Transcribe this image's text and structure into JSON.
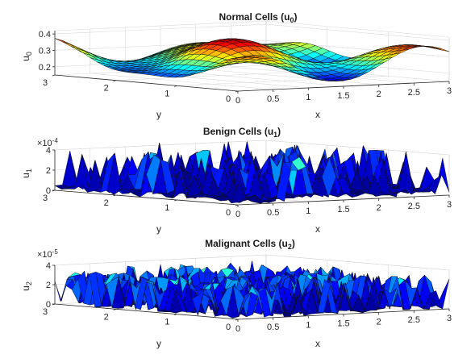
{
  "chart_data": [
    {
      "type": "surface",
      "id": "normal",
      "title": "Normal Cells (u",
      "title_sub": "0",
      "title_end": ")",
      "zlabel": "u",
      "zlabel_sub": "0",
      "xlabel": "x",
      "ylabel": "y",
      "exponent_base": "",
      "exponent_power": "",
      "x_ticks": [
        "0",
        "0.5",
        "1",
        "1.5",
        "2",
        "2.5",
        "3"
      ],
      "y_ticks": [
        "0",
        "1",
        "2",
        "3"
      ],
      "z_ticks": [
        "0.2",
        "0.3",
        "0.4"
      ],
      "x_tick_values": [
        0,
        0.5,
        1,
        1.5,
        2,
        2.5,
        3
      ],
      "y_tick_values": [
        0,
        1,
        2,
        3
      ],
      "z_tick_values": [
        0.2,
        0.3,
        0.4
      ],
      "xlim": [
        0,
        3
      ],
      "ylim": [
        0,
        3
      ],
      "zlim": [
        0.15,
        0.42
      ],
      "colormap": "jet",
      "colormap_colors": [
        "#00007f",
        "#0000ff",
        "#007fff",
        "#00ffff",
        "#7fff7f",
        "#ffff00",
        "#ff7f00",
        "#ff0000",
        "#7f0000"
      ],
      "pattern": "smooth waves",
      "z_min": 0.15,
      "z_max": 0.41,
      "grid": true
    },
    {
      "type": "surface",
      "id": "benign",
      "title": "Benign Cells (u",
      "title_sub": "1",
      "title_end": ")",
      "zlabel": "u",
      "zlabel_sub": "1",
      "xlabel": "x",
      "ylabel": "y",
      "exponent_base": "×10",
      "exponent_power": "-4",
      "x_ticks": [
        "0",
        "0.5",
        "1",
        "1.5",
        "2",
        "2.5",
        "3"
      ],
      "y_ticks": [
        "0",
        "1",
        "2",
        "3"
      ],
      "z_ticks": [
        "0",
        "2",
        "4"
      ],
      "x_tick_values": [
        0,
        0.5,
        1,
        1.5,
        2,
        2.5,
        3
      ],
      "y_tick_values": [
        0,
        1,
        2,
        3
      ],
      "z_tick_values": [
        0,
        2,
        4
      ],
      "xlim": [
        0,
        3
      ],
      "ylim": [
        0,
        3
      ],
      "zlim": [
        0,
        4
      ],
      "colormap": "jet",
      "colormap_colors": [
        "#00007f",
        "#0000ff",
        "#007fff",
        "#00ffff",
        "#7fff7f",
        "#ffff00",
        "#ff7f00",
        "#ff0000",
        "#7f0000"
      ],
      "pattern": "random spikes",
      "z_min": 0,
      "z_max": 4.4,
      "grid": true
    },
    {
      "type": "surface",
      "id": "malignant",
      "title": "Malignant Cells (u",
      "title_sub": "2",
      "title_end": ")",
      "zlabel": "u",
      "zlabel_sub": "2",
      "xlabel": "x",
      "ylabel": "y",
      "exponent_base": "×10",
      "exponent_power": "-5",
      "x_ticks": [
        "0",
        "0.5",
        "1",
        "1.5",
        "2",
        "2.5",
        "3"
      ],
      "y_ticks": [
        "0",
        "1",
        "2",
        "3"
      ],
      "z_ticks": [
        "0",
        "2",
        "4"
      ],
      "x_tick_values": [
        0,
        0.5,
        1,
        1.5,
        2,
        2.5,
        3
      ],
      "y_tick_values": [
        0,
        1,
        2,
        3
      ],
      "z_tick_values": [
        0,
        2,
        4
      ],
      "xlim": [
        0,
        3
      ],
      "ylim": [
        0,
        3
      ],
      "zlim": [
        0,
        4
      ],
      "colormap": "jet",
      "colormap_colors": [
        "#00007f",
        "#0000ff",
        "#007fff",
        "#00ffff",
        "#7fff7f",
        "#ffff00",
        "#ff7f00",
        "#ff0000",
        "#7f0000"
      ],
      "pattern": "dense spikes",
      "z_min": 0,
      "z_max": 3.6,
      "grid": true
    }
  ]
}
